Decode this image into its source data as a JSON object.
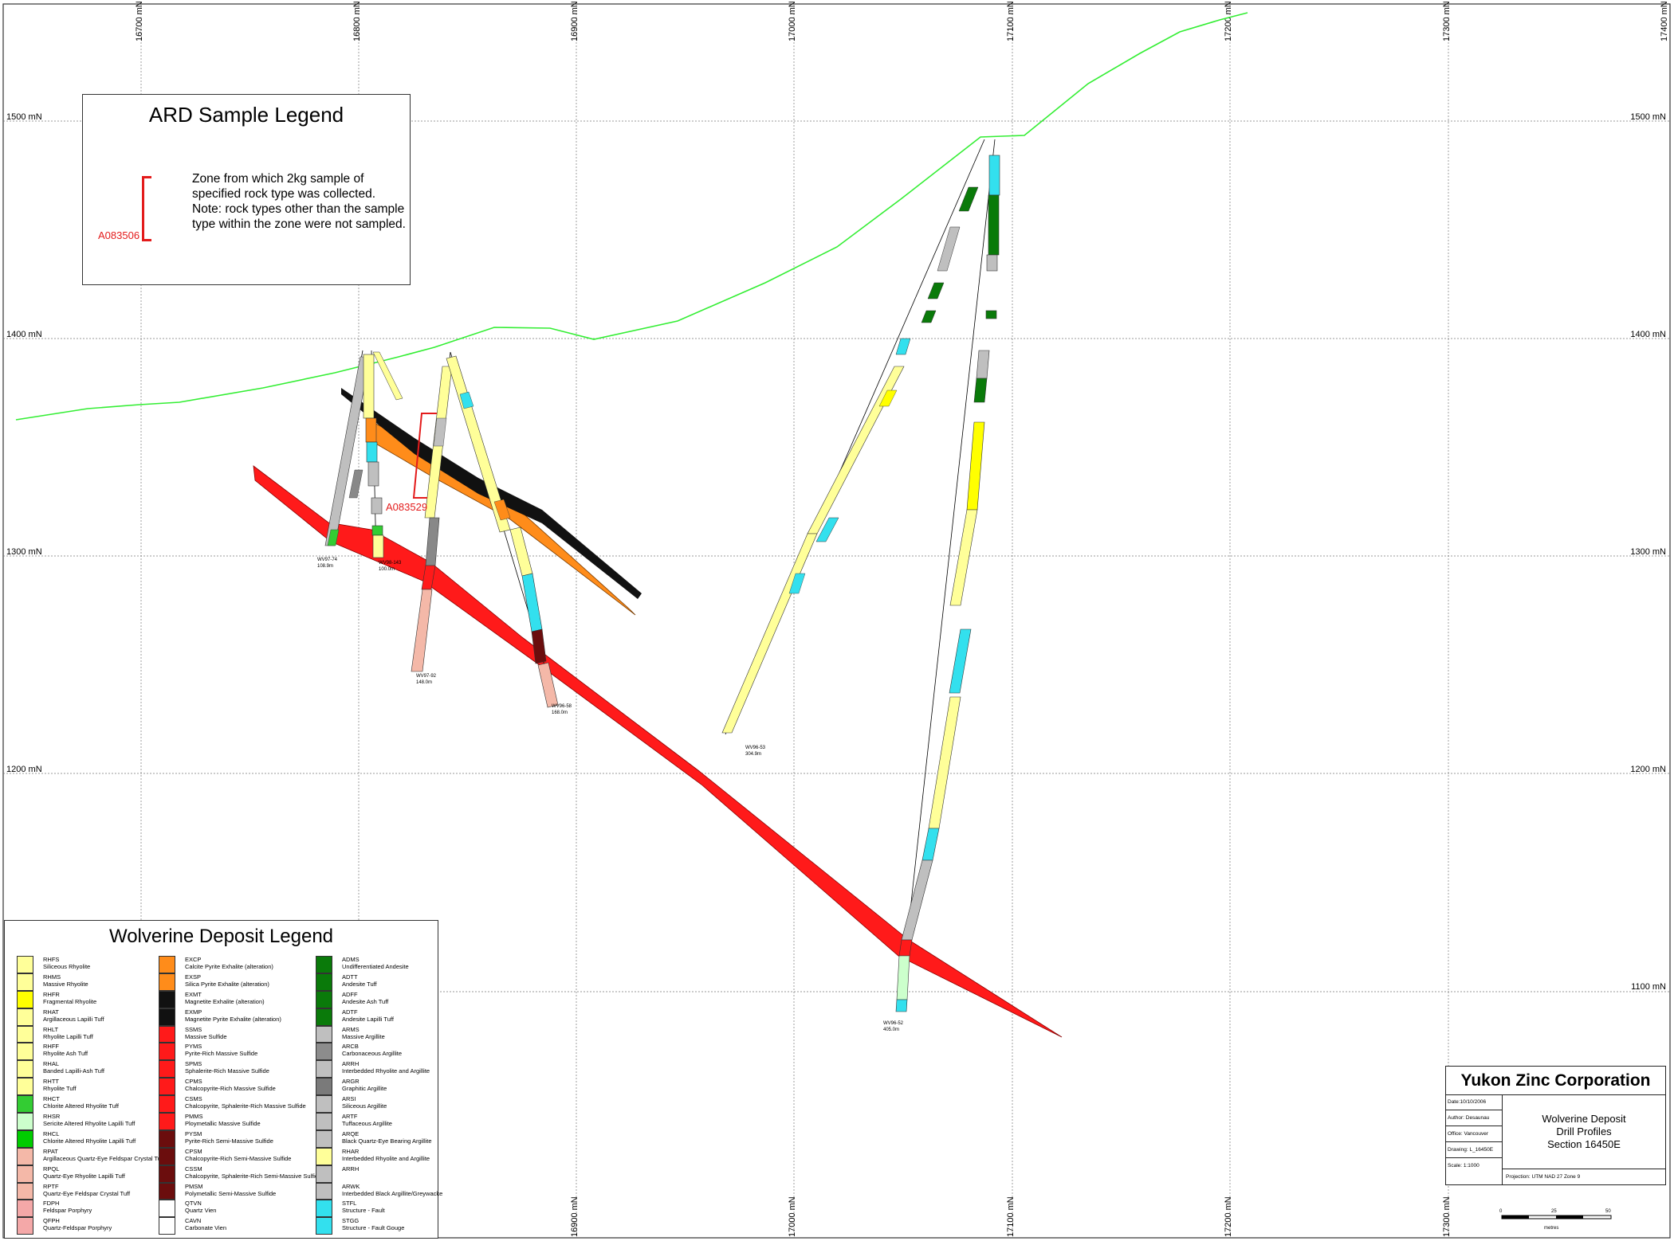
{
  "grid": {
    "easting_labels": [
      "16700 mN",
      "16800 mN",
      "16900 mN",
      "17000 mN",
      "17100 mN",
      "17200 mN",
      "17300 mN",
      "17400 mN"
    ],
    "elevation_labels": [
      "1500 mN",
      "1400 mN",
      "1300 mN",
      "1200 mN",
      "1100 mN"
    ]
  },
  "drill_holes": [
    {
      "id": "WV97-74",
      "depth": "108.9m"
    },
    {
      "id": "WV98-143",
      "depth": "100.0m"
    },
    {
      "id": "WV97-92",
      "depth": "148.0m"
    },
    {
      "id": "WV96-58",
      "depth": "168.0m"
    },
    {
      "id": "WV96-53",
      "depth": "304.9m"
    },
    {
      "id": "WV96-52",
      "depth": "405.0m"
    }
  ],
  "samples": [
    {
      "id": "A083529"
    }
  ],
  "ard_legend": {
    "title": "ARD Sample Legend",
    "description": "Zone from which 2kg sample of specified rock type was collected. Note: rock types other than the sample type within the zone were not sampled.",
    "sample_example": "A083506",
    "bracket_color": "#e31b1b"
  },
  "deposit_legend": {
    "title": "Wolverine Deposit Legend",
    "columns": [
      [
        {
          "code": "RHFS",
          "desc": "Siliceous Rhyolite",
          "color": "#ffff99"
        },
        {
          "code": "RHMS",
          "desc": "Massive Rhyolite",
          "color": "#ffff99"
        },
        {
          "code": "RHFR",
          "desc": "Fragmental Rhyolite",
          "color": "#ffff00"
        },
        {
          "code": "RHAT",
          "desc": "Argillaceous Lapilli Tuff",
          "color": "#ffff99"
        },
        {
          "code": "RHLT",
          "desc": "Rhyolite Lapilli Tuff",
          "color": "#ffff99"
        },
        {
          "code": "RHFF",
          "desc": "Rhyolite Ash Tuff",
          "color": "#ffff99"
        },
        {
          "code": "RHAL",
          "desc": "Banded Lapilli-Ash Tuff",
          "color": "#ffff99"
        },
        {
          "code": "RHTT",
          "desc": "Rhyolite Tuff",
          "color": "#ffff99"
        },
        {
          "code": "RHCT",
          "desc": "Chlorite Altered Rhyolite Tuff",
          "color": "#33cc33"
        },
        {
          "code": "RHSR",
          "desc": "Sericite Altered Rhyolite Lapilli Tuff",
          "color": "#ccffcc"
        },
        {
          "code": "RHCL",
          "desc": "Chlorite Altered Rhyolite Lapilli Tuff",
          "color": "#00cc00"
        },
        {
          "code": "RPAT",
          "desc": "Argillaceous Quartz-Eye Feldspar Crystal Tuff",
          "color": "#f4b8a8"
        },
        {
          "code": "RPQL",
          "desc": "Quartz-Eye Rhyolite Lapilli Tuff",
          "color": "#f4b8a8"
        },
        {
          "code": "RPTF",
          "desc": "Quartz-Eye Feldspar Crystal Tuff",
          "color": "#f4b8a8"
        },
        {
          "code": "FDPH",
          "desc": "Feldspar Porphyry",
          "color": "#f4a8a8"
        },
        {
          "code": "QFPH",
          "desc": "Quartz-Feldspar Porphyry",
          "color": "#f4a8a8"
        }
      ],
      [
        {
          "code": "EXCP",
          "desc": "Calcite Pyrite Exhalite (alteration)",
          "color": "#ff8c1a"
        },
        {
          "code": "EXSP",
          "desc": "Silica Pyrite Exhalite (alteration)",
          "color": "#ff8c1a"
        },
        {
          "code": "EXMT",
          "desc": "Magnetite Exhalite (alteration)",
          "color": "#111111"
        },
        {
          "code": "EXMP",
          "desc": "Magnetite Pyrite Exhalite (alteration)",
          "color": "#111111"
        },
        {
          "code": "SSMS",
          "desc": "Massive Sulfide",
          "color": "#ff1a1a"
        },
        {
          "code": "PYMS",
          "desc": "Pyrite-Rich Massive Sulfide",
          "color": "#ff1a1a"
        },
        {
          "code": "SPMS",
          "desc": "Sphalerite-Rich Massive Sulfide",
          "color": "#ff1a1a"
        },
        {
          "code": "CPMS",
          "desc": "Chalcopyrite-Rich Massive Sulfide",
          "color": "#ff1a1a"
        },
        {
          "code": "CSMS",
          "desc": "Chalcopyrite, Sphalerite-Rich Massive Sulfide",
          "color": "#ff1a1a"
        },
        {
          "code": "PMMS",
          "desc": "Ploymetallic Massive Sulfide",
          "color": "#ff1a1a"
        },
        {
          "code": "PYSM",
          "desc": "Pyrite-Rich Semi-Massive Sulfide",
          "color": "#6b0d0d"
        },
        {
          "code": "CPSM",
          "desc": "Chalcopyrite-Rich Semi-Massive Sulfide",
          "color": "#6b0d0d"
        },
        {
          "code": "CSSM",
          "desc": "Chalcopyrite, Sphalerite-Rich Semi-Massive Sulfide",
          "color": "#6b0d0d"
        },
        {
          "code": "PMSM",
          "desc": "Polymetallic Semi-Massive Sulfide",
          "color": "#6b0d0d"
        },
        {
          "code": "QTVN",
          "desc": "Quartz Vien",
          "color": "#ffffff"
        },
        {
          "code": "CAVN",
          "desc": "Carbonate Vien",
          "color": "#ffffff"
        }
      ],
      [
        {
          "code": "ADMS",
          "desc": "Undifferentiated Andesite",
          "color": "#0a7a0a"
        },
        {
          "code": "ADTT",
          "desc": "Andesite Tuff",
          "color": "#0a7a0a"
        },
        {
          "code": "ADFF",
          "desc": "Andesite Ash Tuff",
          "color": "#0a7a0a"
        },
        {
          "code": "ADTF",
          "desc": "Andesite Lapilli Tuff",
          "color": "#0a7a0a"
        },
        {
          "code": "ARMS",
          "desc": "Massive Argillite",
          "color": "#bfbfbf"
        },
        {
          "code": "ARCB",
          "desc": "Carbonaceous Argillite",
          "color": "#8c8c8c"
        },
        {
          "code": "ARRH",
          "desc": "Interbedded Rhyolite and Argillite",
          "color": "#bfbfbf"
        },
        {
          "code": "ARGR",
          "desc": "Graphitic Argillite",
          "color": "#7a7a7a"
        },
        {
          "code": "ARSI",
          "desc": "Siliceous Argillite",
          "color": "#bfbfbf"
        },
        {
          "code": "ARTF",
          "desc": "Tuffaceous Argillite",
          "color": "#bfbfbf"
        },
        {
          "code": "ARQE",
          "desc": "Black Quartz-Eye Bearing Argillite",
          "color": "#bfbfbf"
        },
        {
          "code": "RHAR",
          "desc": "Interbedded Rhyolite and Argillite",
          "color": "#ffff99"
        },
        {
          "code": "ARRH",
          "desc": "",
          "color": "#bfbfbf"
        },
        {
          "code": "ARWK",
          "desc": "Interbedded Black Argillite/Greywacke",
          "color": "#bfbfbf"
        },
        {
          "code": "STFL",
          "desc": "Structure - Fault",
          "color": "#33e0ee"
        },
        {
          "code": "STGG",
          "desc": "Structure - Fault Gouge",
          "color": "#33e0ee"
        }
      ]
    ]
  },
  "title_block": {
    "company": "Yukon Zinc Corporation",
    "title_lines": [
      "Wolverine Deposit",
      "Drill Profiles",
      "Section 16450E"
    ],
    "date": "Date:10/10/2006",
    "author": "Author: Desaunau",
    "office": "Office: Vancouver",
    "drawing": "Drawing: L_16450E",
    "scale": "Scale: 1:1000",
    "projection": "Projection: UTM NAD 27 Zone 9"
  },
  "scale_bar": {
    "ticks": [
      "0",
      "25",
      "50"
    ],
    "unit": "metres"
  },
  "colors": {
    "topography": "#33ee33",
    "massive_sulfide": "#ff1a1a",
    "magnetite_exhalite": "#111111",
    "pyrite_exhalite": "#ff8c1a",
    "fault": "#33e0ee",
    "rhyolite": "#ffff99",
    "argillite": "#bfbfbf",
    "andesite": "#0a7a0a",
    "sample_bracket": "#e31b1b"
  }
}
